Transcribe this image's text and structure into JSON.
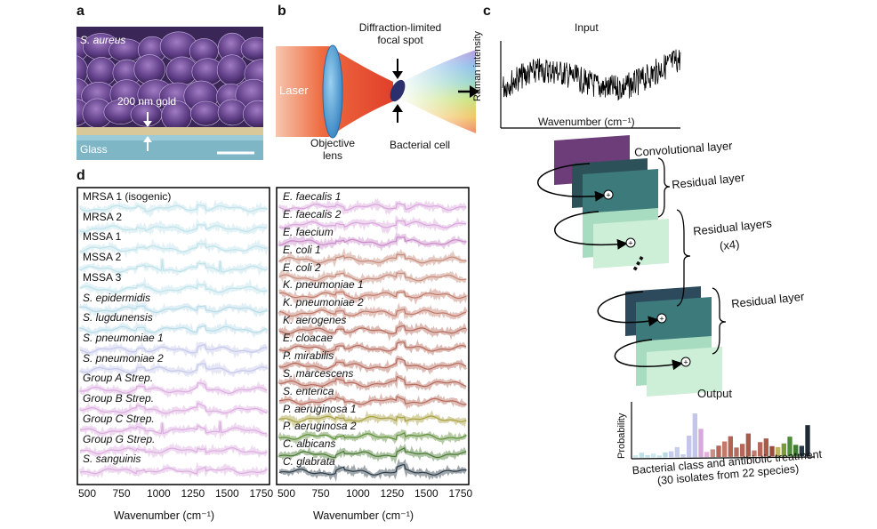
{
  "figure": {
    "panels": [
      {
        "id": "a",
        "label": "a"
      },
      {
        "id": "b",
        "label": "b"
      },
      {
        "id": "c",
        "label": "c"
      },
      {
        "id": "d",
        "label": "d"
      }
    ],
    "panel_a": {
      "organism": "S. aureus",
      "gold_label": "200 nm gold",
      "substrate_label": "Glass"
    },
    "panel_b": {
      "laser_label": "Laser",
      "lens_label_1": "Objective",
      "lens_label_2": "lens",
      "spot_label_1": "Diffraction-limited",
      "spot_label_2": "focal spot",
      "cell_label": "Bacterial cell"
    },
    "panel_c": {
      "input_label": "Input",
      "ylabel": "Raman intensity",
      "xlabel": "Wavenumber (cm⁻¹)",
      "conv_layer": "Convolutional layer",
      "residual_layer_top": "Residual layer",
      "residual_layers_mid": "Residual layers",
      "residual_layers_mult": "(x4)",
      "residual_layer_bottom": "Residual layer",
      "dots": "⋯",
      "output_label": "Output",
      "prob_label": "Probability",
      "class_label_1": "Bacterial class and antibiotic treatment",
      "class_label_2": "(30 isolates from 22 species)",
      "prob_values": [
        0.05,
        0.1,
        0.05,
        0.08,
        0.04,
        0.1,
        0.12,
        0.2,
        0.06,
        0.42,
        0.85,
        0.55,
        0.1,
        0.15,
        0.22,
        0.3,
        0.4,
        0.18,
        0.25,
        0.45,
        0.12,
        0.28,
        0.35,
        0.2,
        0.18,
        0.25,
        0.38,
        0.22,
        0.2,
        0.6
      ],
      "prob_colors": [
        "#cde9ef",
        "#bfe2ea",
        "#bfe2ea",
        "#cde9ef",
        "#bfe2ea",
        "#b7d9e8",
        "#c6cdeb",
        "#c6cdeb",
        "#c6cdeb",
        "#c3c6ea",
        "#c3c6ea",
        "#d6a8dc",
        "#e3b1d9",
        "#c99088",
        "#b5675c",
        "#c27a6f",
        "#b16354",
        "#b16e60",
        "#b5675c",
        "#a95b4a",
        "#c27a6f",
        "#b5675c",
        "#a95b4a",
        "#9a4c3c",
        "#c0b45c",
        "#7b9a39",
        "#4e8c3a",
        "#3f7b2e",
        "#26394a",
        "#1e2b36"
      ]
    },
    "panel_d": {
      "left_labels": [
        {
          "text": "MRSA 1 (isogenic)",
          "italic": false
        },
        {
          "text": "MRSA 2",
          "italic": false
        },
        {
          "text": "MSSA 1",
          "italic": false
        },
        {
          "text": "MSSA 2",
          "italic": false
        },
        {
          "text": "MSSA 3",
          "italic": false
        },
        {
          "text": "S. epidermidis",
          "italic": true
        },
        {
          "text": "S. lugdunensis",
          "italic": true
        },
        {
          "text": "S. pneumoniae 1",
          "italic": true
        },
        {
          "text": "S. pneumoniae 2",
          "italic": true
        },
        {
          "text": "Group A Strep.",
          "italic": true
        },
        {
          "text": "Group B Strep.",
          "italic": true
        },
        {
          "text": "Group C Strep.",
          "italic": true
        },
        {
          "text": "Group G Strep.",
          "italic": true
        },
        {
          "text": "S. sanguinis",
          "italic": true
        }
      ],
      "right_labels": [
        {
          "text": "E. faecalis 1",
          "italic": true
        },
        {
          "text": "E. faecalis 2",
          "italic": true
        },
        {
          "text": "E. faecium",
          "italic": true
        },
        {
          "text": "E. coli 1",
          "italic": true
        },
        {
          "text": "E. coli 2",
          "italic": true
        },
        {
          "text": "K. pneumoniae 1",
          "italic": true
        },
        {
          "text": "K. pneumoniae 2",
          "italic": true
        },
        {
          "text": "K. aerogenes",
          "italic": true
        },
        {
          "text": "E. cloacae",
          "italic": true
        },
        {
          "text": "P. mirabilis",
          "italic": true
        },
        {
          "text": "S. marcescens",
          "italic": true
        },
        {
          "text": "S. enterica",
          "italic": true
        },
        {
          "text": "P. aeruginosa 1",
          "italic": true
        },
        {
          "text": "P. aeruginosa 2",
          "italic": true
        },
        {
          "text": "C. albicans",
          "italic": true
        },
        {
          "text": "C. glabrata",
          "italic": true
        }
      ],
      "left_colors": [
        "#bfe3ea",
        "#bfe3ea",
        "#bfe3ea",
        "#bfe3ea",
        "#bfe3ea",
        "#b7dce8",
        "#b7dce8",
        "#c6c9ea",
        "#c6c9ea",
        "#dcaee0",
        "#dcaee0",
        "#dcaee0",
        "#dcaee0",
        "#dcaee0"
      ],
      "right_colors": [
        "#d9a6dc",
        "#d9a6dc",
        "#c98bc9",
        "#c58a79",
        "#c58a79",
        "#c07a6a",
        "#c07a6a",
        "#b56b5c",
        "#b56b5c",
        "#b56b5c",
        "#b56b5c",
        "#b56b5c",
        "#a8a041",
        "#5f8f3a",
        "#4a7a33",
        "#2b3b47"
      ],
      "xticks": [
        "500",
        "750",
        "1000",
        "1250",
        "1500",
        "1750"
      ],
      "xlabel": "Wavenumber (cm⁻¹)"
    }
  }
}
